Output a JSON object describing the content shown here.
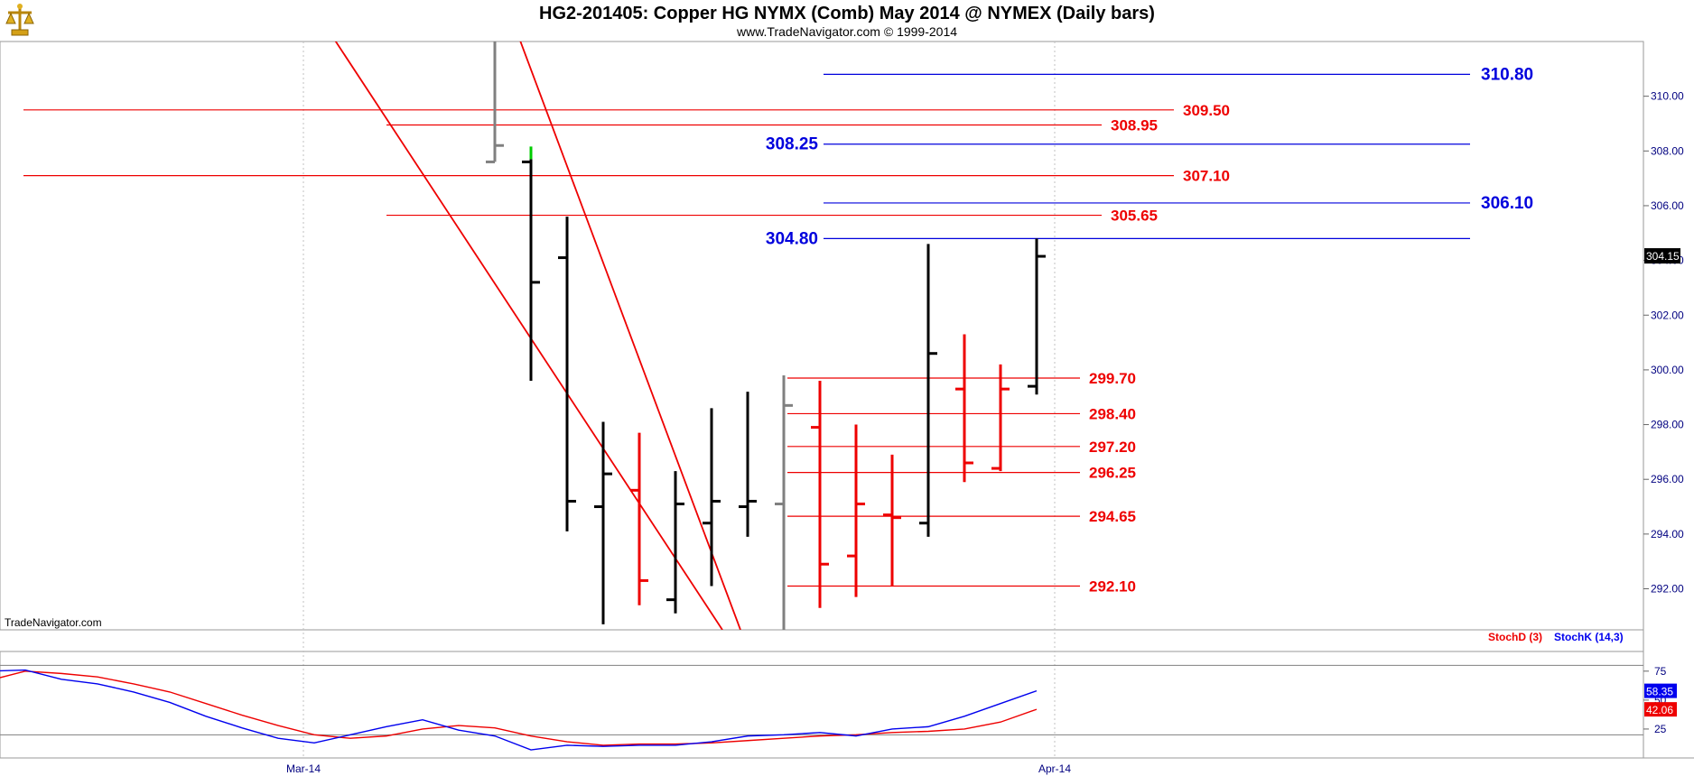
{
  "header": {
    "title": "HG2-201405:  Copper HG NYMX (Comb) May 2014 @ NYMEX  (Daily bars)",
    "subtitle": "www.TradeNavigator.com © 1999-2014",
    "watermark": "TradeNavigator.com",
    "logo_icon": "scales-logo-icon"
  },
  "colors": {
    "up": "#000000",
    "down": "#ee0000",
    "red_level": "#ee0000",
    "blue_level": "#0000dd",
    "axis_text": "#000080",
    "stoch_d": "#ee0000",
    "stoch_k": "#0000ee",
    "last_price_bg": "#000000",
    "grid": "#c0c0c0"
  },
  "chart_data": [
    {
      "type": "ohlc",
      "role": "price",
      "y_axis": {
        "min": 290.5,
        "max": 312,
        "ticks": [
          "292.00",
          "294.00",
          "296.00",
          "298.00",
          "300.00",
          "302.00",
          "304.00",
          "306.00",
          "308.00",
          "310.00"
        ]
      },
      "x_axis": {
        "ticks": [
          "Mar-14",
          "Apr-14"
        ],
        "tick_bars": [
          -5.3,
          15.5
        ]
      },
      "last_price": "304.15",
      "bars": [
        {
          "o": 307.6,
          "h": 315.0,
          "l": 307.6,
          "c": 308.2,
          "color": "gray"
        },
        {
          "o": 307.6,
          "h": 307.7,
          "l": 299.6,
          "c": 303.2,
          "color": "up",
          "tick": "green"
        },
        {
          "o": 304.1,
          "h": 305.6,
          "l": 294.1,
          "c": 295.2,
          "color": "up"
        },
        {
          "o": 295.0,
          "h": 298.1,
          "l": 290.7,
          "c": 296.2,
          "color": "up"
        },
        {
          "o": 295.6,
          "h": 297.7,
          "l": 291.4,
          "c": 292.3,
          "color": "down"
        },
        {
          "o": 291.6,
          "h": 296.3,
          "l": 291.1,
          "c": 295.1,
          "color": "up"
        },
        {
          "o": 294.4,
          "h": 298.6,
          "l": 292.1,
          "c": 295.2,
          "color": "up"
        },
        {
          "o": 295.0,
          "h": 299.2,
          "l": 293.9,
          "c": 295.2,
          "color": "up"
        },
        {
          "o": 295.1,
          "h": 299.8,
          "l": 290.5,
          "c": 298.7,
          "color": "gray"
        },
        {
          "o": 297.9,
          "h": 299.6,
          "l": 291.3,
          "c": 292.9,
          "color": "down"
        },
        {
          "o": 293.2,
          "h": 298.0,
          "l": 291.7,
          "c": 295.1,
          "color": "down"
        },
        {
          "o": 294.7,
          "h": 296.9,
          "l": 292.1,
          "c": 294.6,
          "color": "down"
        },
        {
          "o": 294.4,
          "h": 304.6,
          "l": 293.9,
          "c": 300.6,
          "color": "up"
        },
        {
          "o": 299.3,
          "h": 301.3,
          "l": 295.9,
          "c": 296.6,
          "color": "down"
        },
        {
          "o": 296.4,
          "h": 300.2,
          "l": 296.3,
          "c": 299.3,
          "color": "down"
        },
        {
          "o": 299.4,
          "h": 304.8,
          "l": 299.1,
          "c": 304.15,
          "color": "up"
        }
      ],
      "levels": [
        {
          "label": "310.80",
          "value": 310.8,
          "color": "blue",
          "from": 9.1,
          "to": 27.0
        },
        {
          "label": "309.50",
          "value": 309.5,
          "color": "red",
          "from": -14.0,
          "to": 18.8
        },
        {
          "label": "308.95",
          "value": 308.95,
          "color": "red",
          "from": -3.0,
          "to": 16.8
        },
        {
          "label": "308.25",
          "value": 308.25,
          "color": "blue",
          "from": 9.1,
          "to": 27.0
        },
        {
          "label": "307.10",
          "value": 307.1,
          "color": "red",
          "from": -14.0,
          "to": 18.8
        },
        {
          "label": "306.10",
          "value": 306.1,
          "color": "blue",
          "from": 9.1,
          "to": 27.0
        },
        {
          "label": "305.65",
          "value": 305.65,
          "color": "red",
          "from": -3.0,
          "to": 16.8
        },
        {
          "label": "304.80",
          "value": 304.8,
          "color": "blue",
          "from": 9.1,
          "to": 27.0
        },
        {
          "label": "299.70",
          "value": 299.7,
          "color": "red",
          "from": 8.1,
          "to": 16.2
        },
        {
          "label": "298.40",
          "value": 298.4,
          "color": "red",
          "from": 8.1,
          "to": 16.2
        },
        {
          "label": "297.20",
          "value": 297.2,
          "color": "red",
          "from": 8.1,
          "to": 16.2
        },
        {
          "label": "296.25",
          "value": 296.25,
          "color": "red",
          "from": 8.1,
          "to": 16.2
        },
        {
          "label": "294.65",
          "value": 294.65,
          "color": "red",
          "from": 8.1,
          "to": 16.2
        },
        {
          "label": "292.10",
          "value": 292.1,
          "color": "red",
          "from": 8.1,
          "to": 16.2
        }
      ],
      "trendlines": [
        {
          "from": [
            -5.3,
            313.8
          ],
          "to": [
            6.3,
            290.5
          ]
        },
        {
          "from": [
            0.2,
            313.8
          ],
          "to": [
            6.8,
            290.5
          ]
        }
      ]
    },
    {
      "type": "line",
      "role": "stochastic",
      "y_axis": {
        "min": 0,
        "max": 92,
        "ticks": [
          "25",
          "50",
          "75"
        ]
      },
      "reference_lines": [
        20,
        80
      ],
      "legend": [
        "StochD (3)",
        "StochK (14,3)"
      ],
      "x": [
        -14,
        -13,
        -12,
        -11,
        -10,
        -9,
        -8,
        -7,
        -6,
        -5,
        -4,
        -3,
        -2,
        -1,
        0,
        1,
        2,
        3,
        4,
        5,
        6,
        7,
        8,
        9,
        10,
        11,
        12,
        13,
        14,
        15
      ],
      "series": [
        {
          "name": "StochD (3)",
          "last": "42.06",
          "values": [
            67,
            75,
            73,
            70,
            64,
            57,
            47,
            37,
            28,
            20,
            17,
            19,
            25,
            28,
            26,
            19,
            14,
            11,
            12,
            12,
            13,
            15,
            17,
            19,
            20,
            22,
            23,
            25,
            31,
            42
          ]
        },
        {
          "name": "StochK (14,3)",
          "last": "58.35",
          "values": [
            75,
            76,
            68,
            64,
            57,
            48,
            36,
            26,
            17,
            13,
            20,
            27,
            33,
            24,
            19,
            7,
            11,
            10,
            11,
            11,
            14,
            19,
            20,
            22,
            19,
            25,
            27,
            36,
            47,
            58
          ]
        }
      ]
    }
  ]
}
